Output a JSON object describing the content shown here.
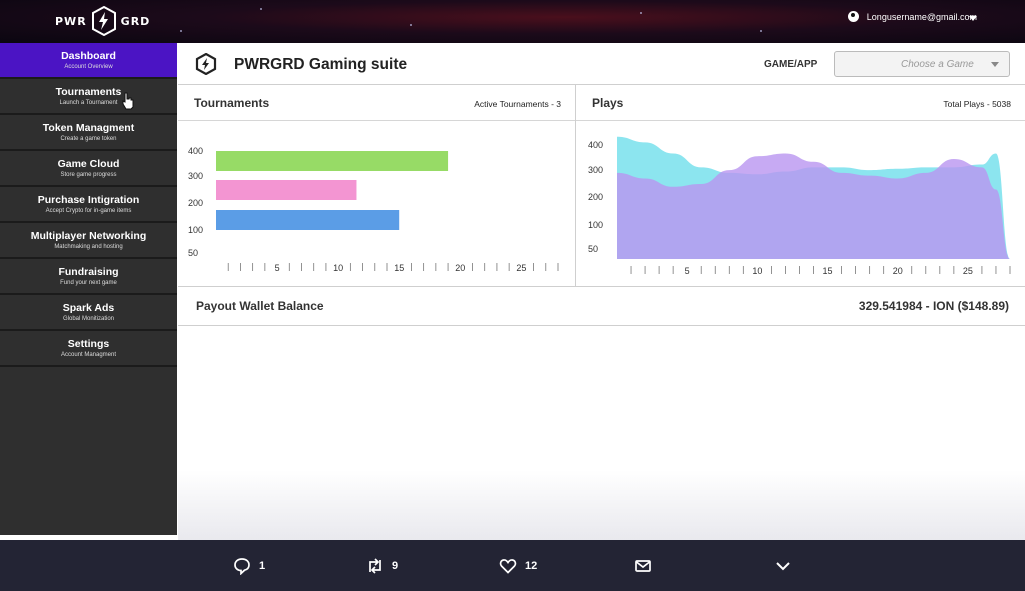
{
  "topbar": {
    "logo_left": "PWR",
    "logo_right": "GRD",
    "user_email": "Longusername@gmail.com"
  },
  "sidebar": {
    "items": [
      {
        "title": "Dashboard",
        "subtitle": "Account Overview",
        "active": true
      },
      {
        "title": "Tournaments",
        "subtitle": "Launch a Tournament"
      },
      {
        "title": "Token Managment",
        "subtitle": "Create a game token"
      },
      {
        "title": "Game Cloud",
        "subtitle": "Store game progress"
      },
      {
        "title": "Purchase Intigration",
        "subtitle": "Accept Crypto for in-game items"
      },
      {
        "title": "Multiplayer Networking",
        "subtitle": "Matchmaking and hosting"
      },
      {
        "title": "Fundraising",
        "subtitle": "Fund your next game"
      },
      {
        "title": "Spark Ads",
        "subtitle": "Global Monitization"
      },
      {
        "title": "Settings",
        "subtitle": "Account Managment"
      }
    ]
  },
  "header": {
    "title": "PWRGRD Gaming suite",
    "game_label": "GAME/APP",
    "game_placeholder": "Choose a Game"
  },
  "tournaments": {
    "title": "Tournaments",
    "stat": "Active Tournaments  - 3"
  },
  "plays": {
    "title": "Plays",
    "stat": "Total Plays  -  5038"
  },
  "wallet": {
    "label": "Payout Wallet Balance",
    "value": "329.541984 - ION  ($148.89)"
  },
  "bottombar": {
    "replies": "1",
    "retweets": "9",
    "likes": "12"
  },
  "chart_data": [
    {
      "type": "bar",
      "orientation": "horizontal",
      "y_ticks": [
        "400",
        "300",
        "200",
        "100",
        "50"
      ],
      "x_ticks": [
        "5",
        "10",
        "15",
        "20",
        "25"
      ],
      "xlim": [
        0,
        28
      ],
      "bars": [
        {
          "value": 19,
          "color": "#97db66"
        },
        {
          "value": 11.5,
          "color": "#f395d2"
        },
        {
          "value": 15,
          "color": "#5b9de6"
        }
      ]
    },
    {
      "type": "area",
      "y_ticks": [
        "400",
        "300",
        "200",
        "100",
        "50"
      ],
      "x_ticks": [
        "5",
        "10",
        "15",
        "20",
        "25"
      ],
      "xlim": [
        0,
        28
      ],
      "ylim": [
        0,
        450
      ],
      "series": [
        {
          "color": "#86e4ee",
          "x": [
            0,
            2,
            4,
            6,
            8,
            10,
            12,
            14,
            16,
            18,
            20,
            22,
            24,
            26,
            27,
            28
          ],
          "y": [
            440,
            420,
            380,
            330,
            310,
            305,
            315,
            330,
            330,
            320,
            325,
            330,
            330,
            340,
            380,
            0
          ]
        },
        {
          "color": "#b995f0",
          "x": [
            0,
            2,
            4,
            6,
            8,
            10,
            12,
            14,
            16,
            18,
            20,
            22,
            24,
            26,
            27,
            28
          ],
          "y": [
            310,
            290,
            260,
            270,
            320,
            370,
            380,
            350,
            310,
            300,
            290,
            310,
            360,
            330,
            250,
            0
          ]
        }
      ]
    }
  ]
}
